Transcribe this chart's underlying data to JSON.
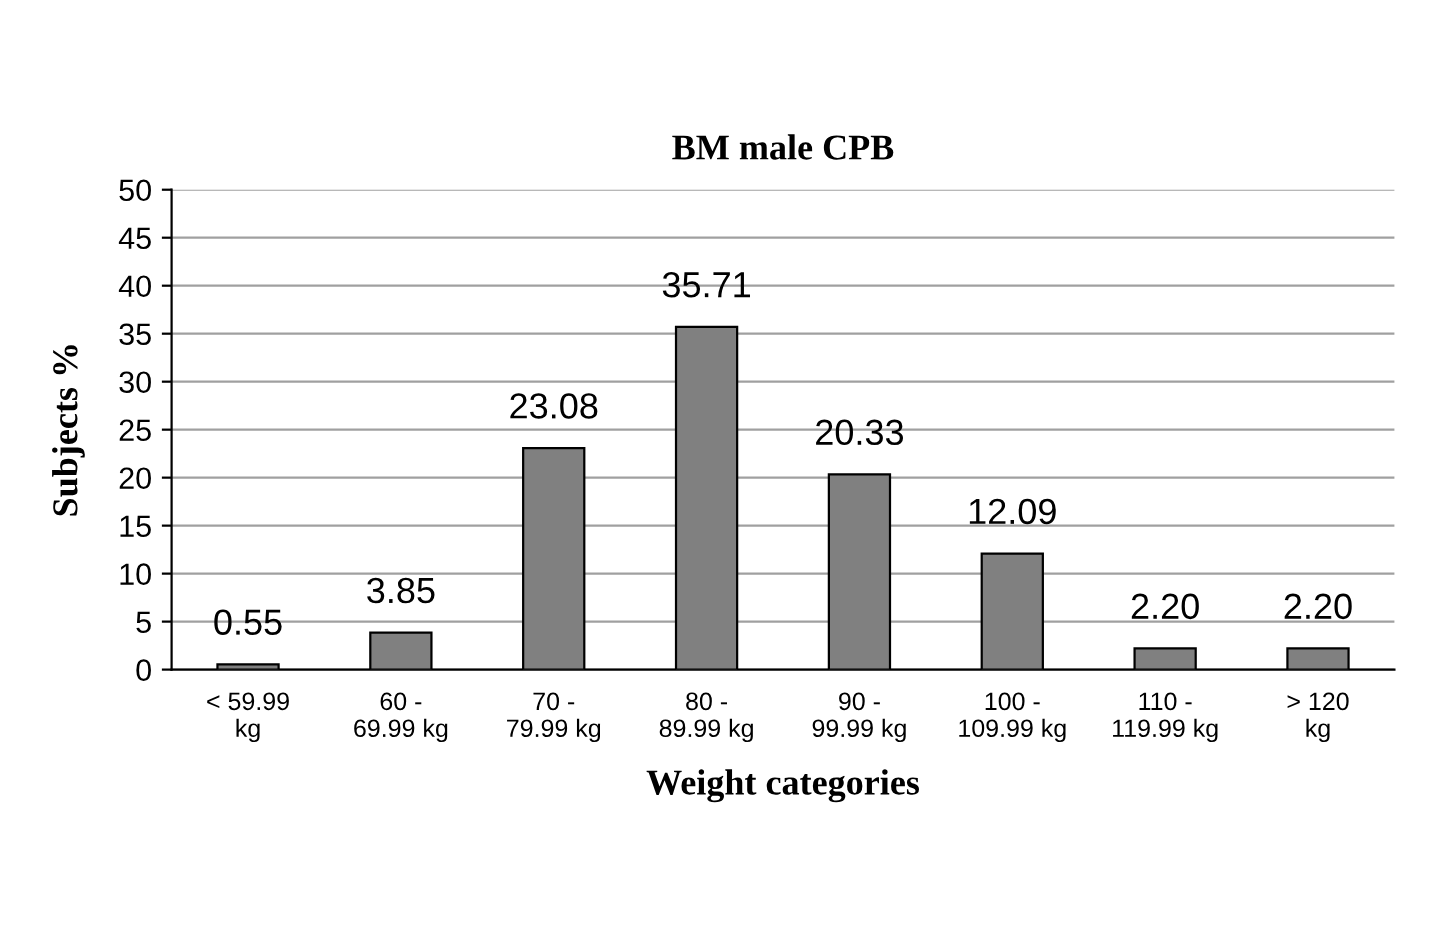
{
  "chart_data": {
    "type": "bar",
    "title": "BM male CPB",
    "xlabel": "Weight categories",
    "ylabel": "Subjects %",
    "categories": [
      "< 59.99\nkg",
      "60 -\n69.99 kg",
      "70 -\n79.99 kg",
      "80 -\n89.99 kg",
      "90 -\n99.99 kg",
      "100 -\n109.99 kg",
      "110 -\n119.99 kg",
      "> 120\nkg"
    ],
    "values": [
      0.55,
      3.85,
      23.08,
      35.71,
      20.33,
      12.09,
      2.2,
      2.2
    ],
    "value_labels": [
      "0.55",
      "3.85",
      "23.08",
      "35.71",
      "20.33",
      "12.09",
      "2.20",
      "2.20"
    ],
    "color": "#808080",
    "ylim": [
      0,
      50
    ],
    "yticks": [
      0,
      5,
      10,
      15,
      20,
      25,
      30,
      35,
      40,
      45,
      50
    ],
    "grid": "y",
    "legend": false
  }
}
